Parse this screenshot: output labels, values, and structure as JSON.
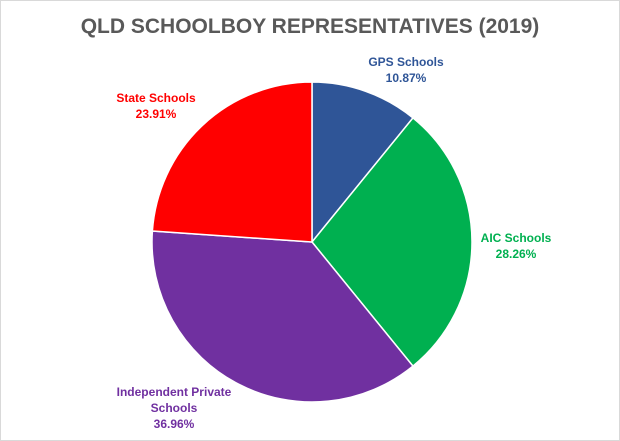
{
  "chart_data": {
    "type": "pie",
    "title": "QLD SCHOOLBOY REPRESENTATIVES (2019)",
    "categories": [
      "GPS Schools",
      "AIC Schools",
      "Independent Private Schools",
      "State Schools"
    ],
    "values": [
      10.87,
      28.26,
      36.96,
      23.91
    ],
    "value_labels": [
      "10.87%",
      "28.26%",
      "36.96%",
      "23.91%"
    ],
    "colors": [
      "#2f5597",
      "#00b050",
      "#7030a0",
      "#ff0000"
    ]
  }
}
